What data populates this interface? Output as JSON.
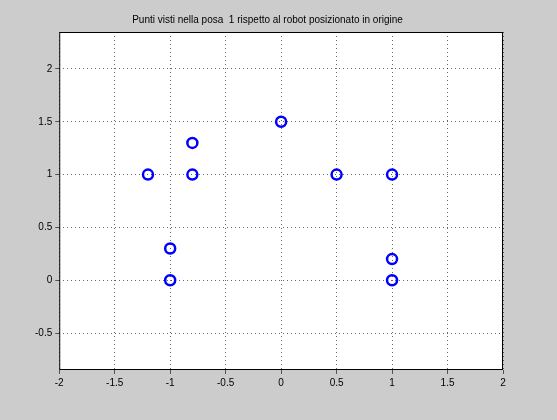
{
  "chart_data": {
    "type": "scatter",
    "title": "Punti visti nella posa  1 rispetto al robot posizionato in origine",
    "x": [
      0,
      -0.8,
      -0.8,
      -1.2,
      0.5,
      1,
      -1,
      -1,
      1,
      1
    ],
    "values": [
      1.5,
      1.3,
      1,
      1,
      1,
      1,
      0.3,
      0,
      0.2,
      0
    ],
    "color": "#0000ff",
    "marker": "circle",
    "xlim": [
      -2,
      2
    ],
    "ylim": [
      -0.85,
      2.35
    ],
    "xticks": [
      -2,
      -1.5,
      -1,
      -0.5,
      0,
      0.5,
      1,
      1.5,
      2
    ],
    "yticks": [
      -0.5,
      0,
      0.5,
      1,
      1.5,
      2
    ],
    "grid": true
  }
}
